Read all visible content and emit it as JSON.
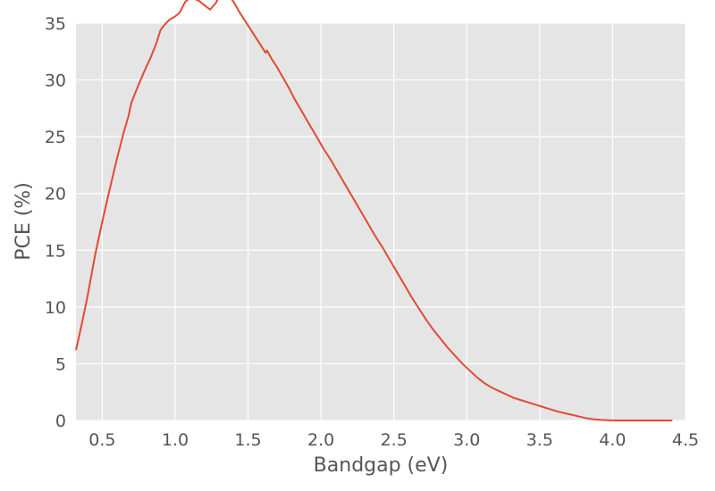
{
  "chart_data": {
    "type": "line",
    "title": "",
    "xlabel": "Bandgap (eV)",
    "ylabel": "PCE (%)",
    "xlim": [
      0.32,
      4.5
    ],
    "ylim": [
      0,
      35
    ],
    "xticks": [
      0.5,
      1.0,
      1.5,
      2.0,
      2.5,
      3.0,
      3.5,
      4.0,
      4.5
    ],
    "xtick_labels": [
      "0.5",
      "1.0",
      "1.5",
      "2.0",
      "2.5",
      "3.0",
      "3.5",
      "4.0",
      "4.5"
    ],
    "yticks": [
      0,
      5,
      10,
      15,
      20,
      25,
      30,
      35
    ],
    "ytick_labels": [
      "0",
      "5",
      "10",
      "15",
      "20",
      "25",
      "30",
      "35"
    ],
    "grid": true,
    "background": "#e5e5e5",
    "series": [
      {
        "color": "#e24a33",
        "x": [
          0.32,
          0.36,
          0.4,
          0.45,
          0.5,
          0.55,
          0.6,
          0.65,
          0.68,
          0.7,
          0.75,
          0.8,
          0.83,
          0.87,
          0.9,
          0.93,
          0.96,
          1.0,
          1.03,
          1.07,
          1.1,
          1.12,
          1.16,
          1.2,
          1.24,
          1.28,
          1.3,
          1.33,
          1.37,
          1.4,
          1.44,
          1.48,
          1.52,
          1.57,
          1.62,
          1.63,
          1.66,
          1.7,
          1.74,
          1.78,
          1.82,
          1.87,
          1.92,
          1.97,
          2.02,
          2.07,
          2.12,
          2.17,
          2.22,
          2.27,
          2.32,
          2.37,
          2.42,
          2.47,
          2.52,
          2.57,
          2.62,
          2.67,
          2.72,
          2.77,
          2.82,
          2.87,
          2.92,
          2.97,
          3.02,
          3.07,
          3.12,
          3.17,
          3.22,
          3.27,
          3.32,
          3.37,
          3.42,
          3.47,
          3.52,
          3.57,
          3.62,
          3.67,
          3.72,
          3.77,
          3.82,
          3.87,
          3.92,
          3.97,
          4.02,
          4.1,
          4.2,
          4.3,
          4.41
        ],
        "y": [
          6.2,
          8.5,
          11.0,
          14.5,
          17.5,
          20.3,
          23.0,
          25.5,
          26.8,
          28.0,
          29.6,
          31.1,
          31.9,
          33.2,
          34.4,
          34.9,
          35.3,
          35.6,
          35.9,
          36.9,
          37.2,
          37.2,
          37.0,
          36.6,
          36.2,
          36.8,
          37.3,
          37.6,
          37.4,
          36.9,
          36.0,
          35.2,
          34.4,
          33.4,
          32.4,
          32.6,
          31.9,
          31.1,
          30.2,
          29.3,
          28.3,
          27.2,
          26.1,
          25.0,
          23.9,
          22.9,
          21.8,
          20.7,
          19.6,
          18.5,
          17.4,
          16.3,
          15.3,
          14.2,
          13.1,
          12.0,
          10.9,
          9.9,
          8.9,
          8.0,
          7.2,
          6.4,
          5.7,
          5.0,
          4.4,
          3.8,
          3.3,
          2.9,
          2.6,
          2.3,
          2.0,
          1.8,
          1.6,
          1.4,
          1.2,
          1.0,
          0.8,
          0.65,
          0.5,
          0.35,
          0.2,
          0.1,
          0.05,
          0.02,
          0.0,
          0.0,
          0.0,
          0.0,
          0.0
        ]
      }
    ]
  }
}
